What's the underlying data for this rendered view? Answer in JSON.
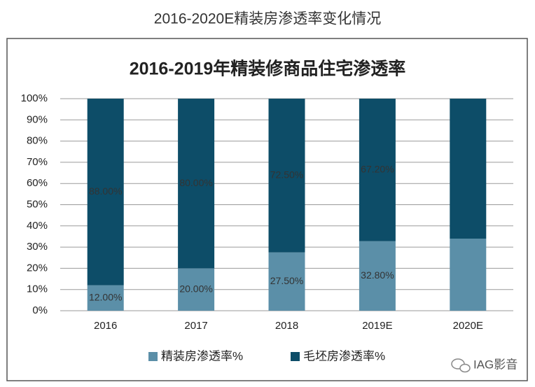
{
  "chart_data": {
    "type": "stacked-bar",
    "page_title": "2016-2020E精装房渗透率变化情况",
    "title": "2016-2019年精装修商品住宅渗透率",
    "categories": [
      "2016",
      "2017",
      "2018",
      "2019E",
      "2020E"
    ],
    "series": [
      {
        "name": "精装房渗透率%",
        "color": "#5b8fa8",
        "values": [
          12,
          20,
          27.5,
          32.8,
          34
        ],
        "value_labels": [
          "12.00%",
          "20.00%",
          "27.50%",
          "32.80%",
          null
        ]
      },
      {
        "name": "毛坯房渗透率%",
        "color": "#0d4d68",
        "values": [
          88,
          80,
          72.5,
          67.2,
          66
        ],
        "value_labels": [
          "88.00%",
          "80.00%",
          "72.50%",
          "67.20%",
          null
        ]
      }
    ],
    "ylim": [
      0,
      100
    ],
    "yticks": [
      {
        "value": 0,
        "label": "0%"
      },
      {
        "value": 10,
        "label": "10%"
      },
      {
        "value": 20,
        "label": "20%"
      },
      {
        "value": 30,
        "label": "30%"
      },
      {
        "value": 40,
        "label": "40%"
      },
      {
        "value": 50,
        "label": "50%"
      },
      {
        "value": 60,
        "label": "60%"
      },
      {
        "value": 70,
        "label": "70%"
      },
      {
        "value": 80,
        "label": "80%"
      },
      {
        "value": 90,
        "label": "90%"
      },
      {
        "value": 100,
        "label": "100%"
      }
    ],
    "grid": true,
    "legend": "bottom"
  },
  "watermark": "IAG影音"
}
